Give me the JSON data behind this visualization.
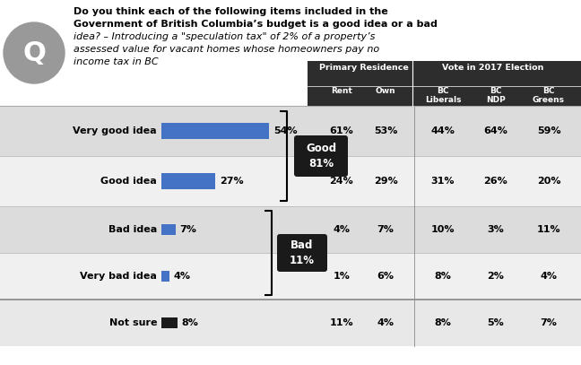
{
  "title_lines": [
    "Do you think each of the following items included in the",
    "Government of British Columbia’s budget is a good idea or a bad",
    "idea? – Introducing a \"speculation tax\" of 2% of a property’s",
    "assessed value for vacant homes whose homeowners pay no",
    "income tax in BC"
  ],
  "rows": [
    {
      "label": "Very good idea",
      "value": 54,
      "bar_color": "#4472C4",
      "pct": 0.54
    },
    {
      "label": "Good idea",
      "value": 27,
      "bar_color": "#4472C4",
      "pct": 0.27
    },
    {
      "label": "Bad idea",
      "value": 7,
      "bar_color": "#4472C4",
      "pct": 0.07
    },
    {
      "label": "Very bad idea",
      "value": 4,
      "bar_color": "#4472C4",
      "pct": 0.04
    },
    {
      "label": "Not sure",
      "value": 8,
      "bar_color": "#1a1a1a",
      "pct": 0.08
    }
  ],
  "good_label": "Good\n81%",
  "bad_label": "Bad\n11%",
  "col_header_top1": "Primary Residence",
  "col_header_top2": "Vote in 2017 Election",
  "col_headers": [
    "Rent",
    "Own",
    "BC\nLiberals",
    "BC\nNDP",
    "BC\nGreens"
  ],
  "table_data": [
    [
      "61%",
      "53%",
      "44%",
      "64%",
      "59%"
    ],
    [
      "24%",
      "29%",
      "31%",
      "26%",
      "20%"
    ],
    [
      "4%",
      "7%",
      "10%",
      "3%",
      "11%"
    ],
    [
      "1%",
      "6%",
      "8%",
      "2%",
      "4%"
    ],
    [
      "11%",
      "4%",
      "8%",
      "5%",
      "7%"
    ]
  ],
  "header_bg": "#2d2d2d",
  "row_colors": [
    "#dcdcdc",
    "#f0f0f0",
    "#dcdcdc",
    "#f0f0f0",
    "#e8e8e8"
  ],
  "white_bg": "#ffffff"
}
